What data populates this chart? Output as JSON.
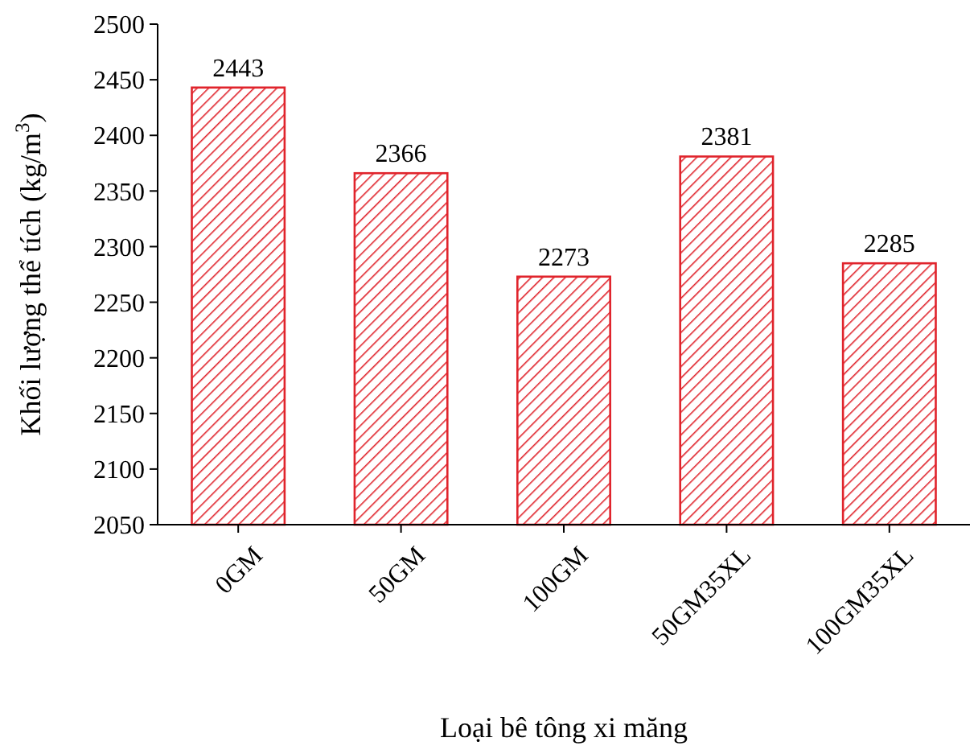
{
  "chart_data": {
    "type": "bar",
    "xlabel": "Loại bê tông xi măng",
    "ylabel": "Khối lượng thể tích (kg/m$^{3}$)",
    "categories": [
      "0GM",
      "50GM",
      "100GM",
      "50GM35XL",
      "100GM35XL"
    ],
    "values": [
      2443,
      2366,
      2273,
      2381,
      2285
    ],
    "color": "#e0242c",
    "ylim": [
      2050,
      2500
    ],
    "yticks": [
      2050,
      2100,
      2150,
      2200,
      2250,
      2300,
      2350,
      2400,
      2450,
      2500
    ],
    "data_labels": true,
    "grid": false
  }
}
